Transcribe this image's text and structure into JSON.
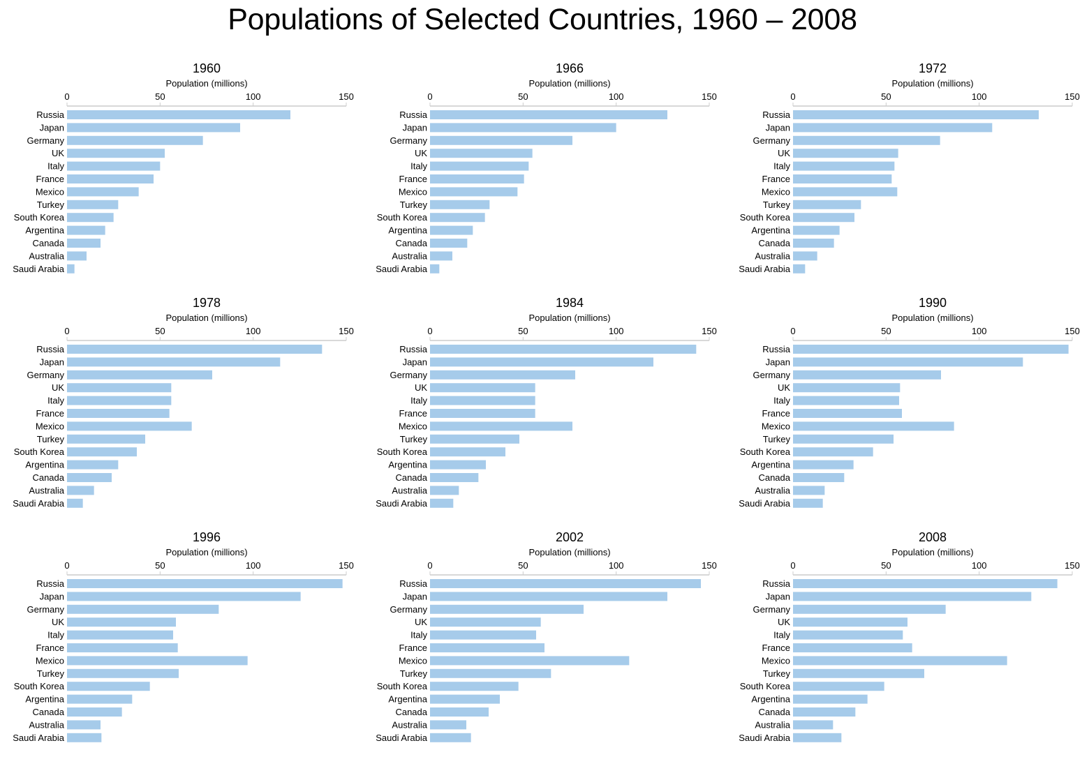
{
  "title": "Populations of Selected Countries, 1960 – 2008",
  "colors": {
    "bar": "#a6cbea",
    "axis": "#cccccc",
    "text": "#000000"
  },
  "chart_data": {
    "type": "bar",
    "orientation": "horizontal",
    "xlabel": "Population (millions)",
    "xlim": [
      0,
      150
    ],
    "xticks": [
      0,
      50,
      100,
      150
    ],
    "categories": [
      "Russia",
      "Japan",
      "Germany",
      "UK",
      "Italy",
      "France",
      "Mexico",
      "Turkey",
      "South Korea",
      "Argentina",
      "Canada",
      "Australia",
      "Saudi Arabia"
    ],
    "panels": [
      {
        "title": "1960",
        "values": [
          120,
          93,
          73,
          52.5,
          50,
          46.5,
          38.5,
          27.5,
          25,
          20.5,
          18,
          10.5,
          4
        ]
      },
      {
        "title": "1966",
        "values": [
          127.5,
          100,
          76.5,
          55,
          53,
          50.5,
          47,
          32,
          29.5,
          23,
          20,
          12,
          5
        ]
      },
      {
        "title": "1972",
        "values": [
          132,
          107,
          79,
          56.5,
          54.5,
          53,
          56,
          36.5,
          33,
          25,
          22,
          13,
          6.5
        ]
      },
      {
        "title": "1978",
        "values": [
          137,
          114.5,
          78,
          56,
          56,
          55,
          67,
          42,
          37.5,
          27.5,
          24,
          14.5,
          8.5
        ]
      },
      {
        "title": "1984",
        "values": [
          143,
          120,
          78,
          56.5,
          56.5,
          56.5,
          76.5,
          48,
          40.5,
          30,
          26,
          15.5,
          12.5
        ]
      },
      {
        "title": "1990",
        "values": [
          148,
          123.5,
          79.5,
          57.5,
          57,
          58.5,
          86.5,
          54,
          43,
          32.5,
          27.5,
          17,
          16
        ]
      },
      {
        "title": "1996",
        "values": [
          148,
          125.5,
          81.5,
          58.5,
          57,
          59.5,
          97,
          60,
          44.5,
          35,
          29.5,
          18,
          18.5
        ]
      },
      {
        "title": "2002",
        "values": [
          145.5,
          127.5,
          82.5,
          59.5,
          57,
          61.5,
          107,
          65,
          47.5,
          37.5,
          31.5,
          19.5,
          22
        ]
      },
      {
        "title": "2008",
        "values": [
          142,
          128,
          82,
          61.5,
          59,
          64,
          115,
          70.5,
          49,
          40,
          33.5,
          21.5,
          26
        ]
      }
    ]
  }
}
